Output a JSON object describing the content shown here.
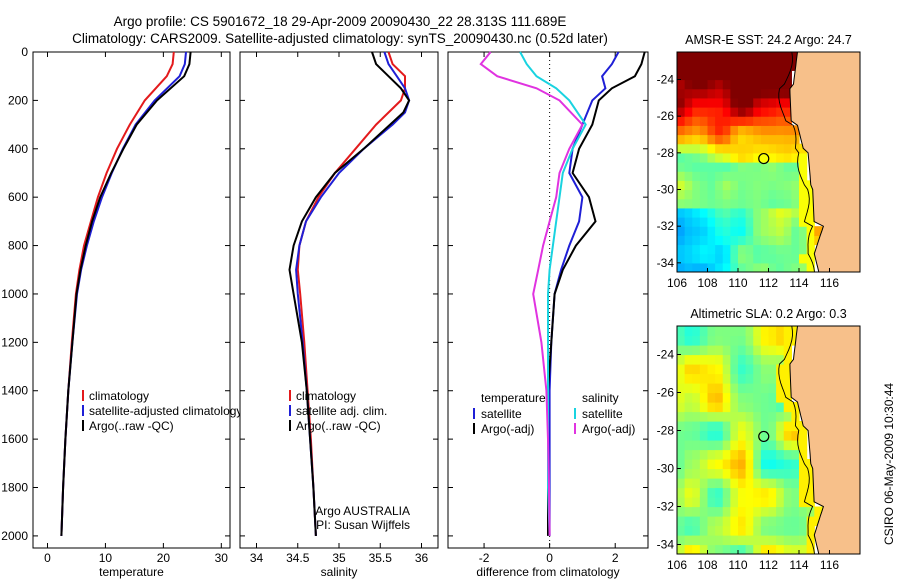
{
  "header": {
    "line1": "Argo profile: CS 5901672_18 29-Apr-2009 20090430_22 28.313S 111.689E",
    "line2": "Climatology: CARS2009. Satellite-adjusted climatology: synTS_20090430.nc (0.52d later)"
  },
  "colors": {
    "climatology": "#e31a1c",
    "satellite": "#1f1fd6",
    "argo": "#000000",
    "satellite_salinity": "#19d3e0",
    "argo_salinity": "#e033e0",
    "land": "#f7c08a"
  },
  "chart_data": [
    {
      "type": "line",
      "panel": "temperature",
      "xlabel": "temperature",
      "ylabel": "",
      "xlim": [
        -2.5,
        31.5
      ],
      "ylim": [
        2050,
        0
      ],
      "y_reversed": true,
      "xticks": [
        0,
        10,
        20,
        30
      ],
      "yticks": [
        0,
        200,
        400,
        600,
        800,
        1000,
        1200,
        1400,
        1600,
        1800,
        2000
      ],
      "depth": [
        0,
        50,
        100,
        200,
        300,
        400,
        500,
        600,
        700,
        800,
        900,
        1000,
        1200,
        1400,
        1600,
        1800,
        2000
      ],
      "series": [
        {
          "name": "climatology",
          "color_key": "climatology",
          "values": [
            21.8,
            21.6,
            20.6,
            16.8,
            14.2,
            12.0,
            10.2,
            8.7,
            7.5,
            6.3,
            5.5,
            4.9,
            4.2,
            3.6,
            3.1,
            2.7,
            2.4
          ]
        },
        {
          "name": "satellite-adjusted climatology",
          "color_key": "satellite",
          "values": [
            23.9,
            23.7,
            22.8,
            18.5,
            15.2,
            13.0,
            11.1,
            9.4,
            8.0,
            6.8,
            5.8,
            5.1,
            4.3,
            3.6,
            3.1,
            2.7,
            2.4
          ]
        },
        {
          "name": "Argo(..raw -QC)",
          "color_key": "argo",
          "values": [
            24.7,
            24.5,
            23.6,
            18.9,
            15.4,
            13.1,
            11.0,
            9.1,
            7.7,
            6.6,
            5.7,
            5.0,
            4.3,
            3.6,
            3.1,
            2.7,
            2.4
          ]
        }
      ],
      "legend": [
        "climatology",
        "satellite-adjusted climatology",
        "Argo(..raw -QC)"
      ]
    },
    {
      "type": "line",
      "panel": "salinity",
      "xlabel": "salinity",
      "ylabel": "",
      "xlim": [
        33.8,
        36.2
      ],
      "ylim": [
        2050,
        0
      ],
      "y_reversed": true,
      "xticks": [
        34,
        34.5,
        35,
        35.5,
        36
      ],
      "depth": [
        0,
        50,
        100,
        150,
        200,
        250,
        300,
        400,
        500,
        600,
        700,
        800,
        900,
        1000,
        1200,
        1400,
        1600,
        1800,
        2000
      ],
      "series": [
        {
          "name": "climatology",
          "color_key": "climatology",
          "values": [
            35.6,
            35.65,
            35.8,
            35.8,
            35.75,
            35.6,
            35.45,
            35.2,
            34.95,
            34.75,
            34.6,
            34.52,
            34.5,
            34.53,
            34.58,
            34.62,
            34.66,
            34.69,
            34.72
          ]
        },
        {
          "name": "satellite adj. clim.",
          "color_key": "satellite",
          "values": [
            35.55,
            35.6,
            35.7,
            35.8,
            35.85,
            35.8,
            35.65,
            35.3,
            35.0,
            34.78,
            34.6,
            34.52,
            34.48,
            34.5,
            34.56,
            34.61,
            34.65,
            34.69,
            34.72
          ]
        },
        {
          "name": "Argo(..raw -QC)",
          "color_key": "argo",
          "values": [
            35.4,
            35.45,
            35.6,
            35.75,
            35.85,
            35.78,
            35.62,
            35.3,
            34.95,
            34.72,
            34.55,
            34.45,
            34.4,
            34.45,
            34.55,
            34.61,
            34.65,
            34.69,
            34.72
          ]
        }
      ],
      "legend": [
        "climatology",
        "satellite adj. clim.",
        "Argo(..raw -QC)"
      ],
      "annotation": [
        "Argo AUSTRALIA",
        "PI: Susan Wijffels"
      ]
    },
    {
      "type": "line",
      "panel": "difference",
      "xlabel": "difference from climatology",
      "ylabel": "",
      "xlim": [
        -3.1,
        3.0
      ],
      "ylim": [
        2050,
        0
      ],
      "y_reversed": true,
      "xticks": [
        -2,
        0,
        2
      ],
      "zero_line": "dotted",
      "depth": [
        0,
        50,
        100,
        150,
        200,
        300,
        400,
        500,
        600,
        700,
        800,
        900,
        1000,
        1200,
        1400,
        1600,
        1800,
        2000
      ],
      "series": [
        {
          "name": "temperature satellite",
          "color_key": "satellite",
          "values": [
            2.1,
            1.9,
            1.6,
            1.7,
            1.3,
            1.0,
            0.7,
            0.6,
            1.0,
            0.9,
            0.6,
            0.35,
            0.15,
            0.05,
            0.0,
            0.0,
            0.0,
            0.0
          ]
        },
        {
          "name": "temperature Argo(-adj)",
          "color_key": "argo",
          "values": [
            2.9,
            2.8,
            2.6,
            1.9,
            1.5,
            1.3,
            0.9,
            0.7,
            1.2,
            1.4,
            0.8,
            0.4,
            0.15,
            0.05,
            -0.05,
            -0.05,
            -0.05,
            -0.05
          ]
        },
        {
          "name": "salinity satellite",
          "color_key": "satellite_salinity",
          "values": [
            -0.9,
            -0.7,
            -0.4,
            0.2,
            0.6,
            1.1,
            0.7,
            0.4,
            0.3,
            0.2,
            0.1,
            0.0,
            -0.05,
            -0.05,
            -0.05,
            -0.05,
            -0.05,
            0.0
          ]
        },
        {
          "name": "salinity Argo(-adj)",
          "color_key": "argo_salinity",
          "values": [
            -1.8,
            -2.1,
            -1.6,
            -0.4,
            0.3,
            1.0,
            0.6,
            0.3,
            0.2,
            0.0,
            -0.2,
            -0.35,
            -0.5,
            -0.25,
            -0.1,
            -0.05,
            -0.02,
            0.0
          ]
        }
      ],
      "legend": {
        "temperature_heading": "temperature",
        "salinity_heading": "salinity",
        "temperature_items": [
          "satellite",
          "Argo(-adj)"
        ],
        "salinity_items": [
          "satellite",
          "Argo(-adj)"
        ]
      }
    },
    {
      "type": "heatmap",
      "panel": "AMSR-E SST map",
      "title": "AMSR-E SST: 24.2 Argo: 24.7",
      "xlim": [
        106,
        118
      ],
      "ylim": [
        -34.5,
        -22.5
      ],
      "xticks": [
        106,
        108,
        110,
        112,
        114,
        116
      ],
      "yticks": [
        -24,
        -26,
        -28,
        -30,
        -32,
        -34
      ],
      "float_position": {
        "lon": 111.689,
        "lat": -28.313
      }
    },
    {
      "type": "heatmap",
      "panel": "Altimetric SLA map",
      "title": "Altimetric SLA: 0.2 Argo: 0.3",
      "xlim": [
        106,
        118
      ],
      "ylim": [
        -34.5,
        -22.5
      ],
      "xticks": [
        106,
        108,
        110,
        112,
        114,
        116
      ],
      "yticks": [
        -24,
        -26,
        -28,
        -30,
        -32,
        -34
      ],
      "float_position": {
        "lon": 111.689,
        "lat": -28.313
      }
    }
  ],
  "footer": {
    "timestamp": "CSIRO 06-May-2009 10:30:44"
  }
}
